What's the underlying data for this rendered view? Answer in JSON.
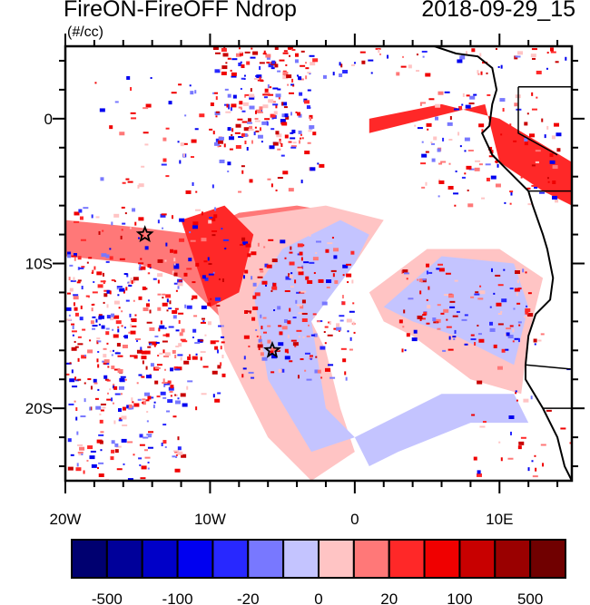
{
  "header": {
    "title": "FireON-FireOFF Ndrop",
    "date": "2018-09-29_15",
    "units": "(#/cc)"
  },
  "chart_data": {
    "type": "heatmap",
    "title": "FireON-FireOFF Ndrop",
    "subtitle": "2018-09-29_15",
    "units": "(#/cc)",
    "xlim": [
      -20,
      15
    ],
    "ylim": [
      -25,
      5
    ],
    "x_ticks": [
      {
        "value": -20,
        "label": "20W"
      },
      {
        "value": -10,
        "label": "10W"
      },
      {
        "value": 0,
        "label": "0"
      },
      {
        "value": 10,
        "label": "10E"
      }
    ],
    "y_ticks": [
      {
        "value": 0,
        "label": "0"
      },
      {
        "value": -10,
        "label": "10S"
      },
      {
        "value": -20,
        "label": "20S"
      }
    ],
    "markers": [
      {
        "symbol": "star",
        "lon": -14.5,
        "lat": -8
      },
      {
        "symbol": "star",
        "lon": -5.7,
        "lat": -16
      }
    ],
    "colorbar": {
      "levels": [
        -500,
        -200,
        -100,
        -50,
        -20,
        -10,
        0,
        10,
        20,
        50,
        100,
        200,
        500
      ],
      "labels": [
        "-500",
        "-100",
        "-20",
        "0",
        "20",
        "100",
        "500"
      ],
      "colors": [
        "#000070",
        "#00009a",
        "#0000c8",
        "#0000f0",
        "#2828ff",
        "#7878ff",
        "#c4c4ff",
        "#ffc4c4",
        "#ff7878",
        "#ff2828",
        "#f00000",
        "#c80000",
        "#9a0000",
        "#700000"
      ]
    }
  }
}
